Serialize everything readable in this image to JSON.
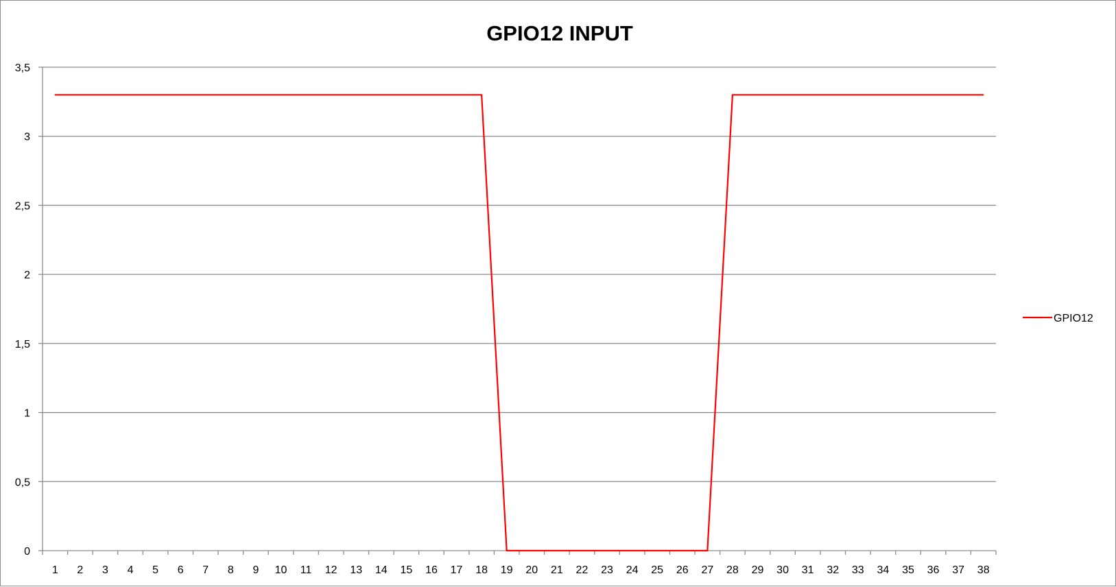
{
  "chart_data": {
    "type": "line",
    "title": "GPIO12 INPUT",
    "xlabel": "",
    "ylabel": "",
    "x": [
      1,
      2,
      3,
      4,
      5,
      6,
      7,
      8,
      9,
      10,
      11,
      12,
      13,
      14,
      15,
      16,
      17,
      18,
      19,
      20,
      21,
      22,
      23,
      24,
      25,
      26,
      27,
      28,
      29,
      30,
      31,
      32,
      33,
      34,
      35,
      36,
      37,
      38
    ],
    "series": [
      {
        "name": "GPIO12",
        "color": "#ff0000",
        "values": [
          3.3,
          3.3,
          3.3,
          3.3,
          3.3,
          3.3,
          3.3,
          3.3,
          3.3,
          3.3,
          3.3,
          3.3,
          3.3,
          3.3,
          3.3,
          3.3,
          3.3,
          3.3,
          0,
          0,
          0,
          0,
          0,
          0,
          0,
          0,
          0,
          3.3,
          3.3,
          3.3,
          3.3,
          3.3,
          3.3,
          3.3,
          3.3,
          3.3,
          3.3,
          3.3
        ]
      }
    ],
    "ylim": [
      0,
      3.5
    ],
    "y_ticks": [
      0,
      0.5,
      1,
      1.5,
      2,
      2.5,
      3,
      3.5
    ],
    "y_tick_labels": [
      "0",
      "0,5",
      "1",
      "1,5",
      "2",
      "2,5",
      "3",
      "3,5"
    ],
    "x_tick_labels": [
      "1",
      "2",
      "3",
      "4",
      "5",
      "6",
      "7",
      "8",
      "9",
      "10",
      "11",
      "12",
      "13",
      "14",
      "15",
      "16",
      "17",
      "18",
      "19",
      "20",
      "21",
      "22",
      "23",
      "24",
      "25",
      "26",
      "27",
      "28",
      "29",
      "30",
      "31",
      "32",
      "33",
      "34",
      "35",
      "36",
      "37",
      "38"
    ],
    "grid": true,
    "legend_position": "right",
    "colors": {
      "gridline": "#8c8c8c",
      "axis": "#8c8c8c",
      "border": "#8c8c8c"
    }
  }
}
